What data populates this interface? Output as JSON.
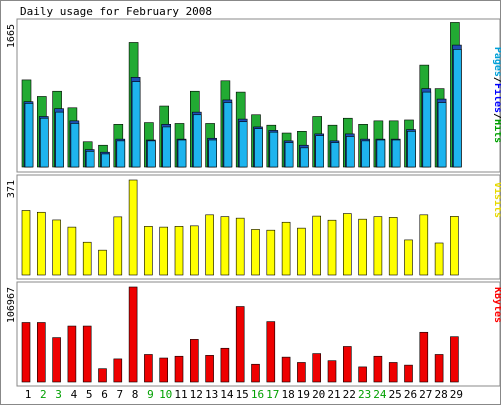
{
  "chart_data": {
    "type": "bar",
    "title": "Daily usage for February 2008",
    "categories": [
      "1",
      "2",
      "3",
      "4",
      "5",
      "6",
      "7",
      "8",
      "9",
      "10",
      "11",
      "12",
      "13",
      "14",
      "15",
      "16",
      "17",
      "18",
      "19",
      "20",
      "21",
      "22",
      "23",
      "24",
      "25",
      "26",
      "27",
      "28",
      "29"
    ],
    "weekend_days": [
      "2",
      "3",
      "9",
      "10",
      "16",
      "17",
      "23",
      "24"
    ],
    "panels": [
      {
        "id": "hits",
        "ymax": 1665,
        "ymax_label": "1665",
        "legend": [
          "Pages",
          "Files",
          "Hits"
        ],
        "legend_colors": [
          "#00a0d8",
          "#0000ff",
          "#00a000"
        ],
        "series": [
          {
            "name": "Hits",
            "color": "#22aa33",
            "values": [
              1000,
              810,
              870,
              680,
              290,
              250,
              490,
              1430,
              510,
              700,
              500,
              870,
              500,
              990,
              860,
              600,
              480,
              390,
              410,
              580,
              480,
              560,
              490,
              530,
              530,
              540,
              1170,
              900,
              1660
            ]
          },
          {
            "name": "Files",
            "color": "#1e4fb4",
            "values": [
              750,
              580,
              670,
              530,
              200,
              170,
              320,
              1030,
              310,
              490,
              320,
              630,
              330,
              770,
              550,
              460,
              420,
              300,
              250,
              380,
              300,
              380,
              320,
              320,
              320,
              430,
              900,
              780,
              1400
            ]
          },
          {
            "name": "Pages",
            "color": "#1eb4ee",
            "values": [
              730,
              560,
              630,
              500,
              180,
              150,
              300,
              980,
              300,
              460,
              310,
              600,
              310,
              740,
              520,
              440,
              400,
              280,
              220,
              360,
              280,
              350,
              300,
              310,
              310,
              410,
              860,
              740,
              1350
            ]
          }
        ]
      },
      {
        "id": "visits",
        "ymax": 371,
        "ymax_label": "371",
        "legend": [
          "Visits"
        ],
        "legend_colors": [
          "#e6d800"
        ],
        "series": [
          {
            "name": "Visits",
            "color": "#ffff00",
            "values": [
              252,
              245,
              215,
              187,
              128,
              97,
              227,
              371,
              190,
              187,
              190,
              192,
              235,
              228,
              222,
              178,
              175,
              206,
              183,
              230,
              214,
              240,
              218,
              228,
              225,
              137,
              235,
              125,
              229
            ]
          }
        ]
      },
      {
        "id": "kbytes",
        "ymax": 106967,
        "ymax_label": "106967",
        "legend": [
          "KBytes"
        ],
        "legend_colors": [
          "#ff0000"
        ],
        "series": [
          {
            "name": "KBytes",
            "color": "#ee0000",
            "values": [
              67000,
              67000,
              50000,
              63000,
              63000,
              15000,
              26000,
              106967,
              31000,
              27000,
              29000,
              48000,
              30000,
              38000,
              85000,
              20000,
              68000,
              28000,
              22000,
              32000,
              24000,
              40000,
              17000,
              29000,
              22000,
              19000,
              56000,
              31000,
              51000
            ]
          }
        ]
      }
    ]
  }
}
